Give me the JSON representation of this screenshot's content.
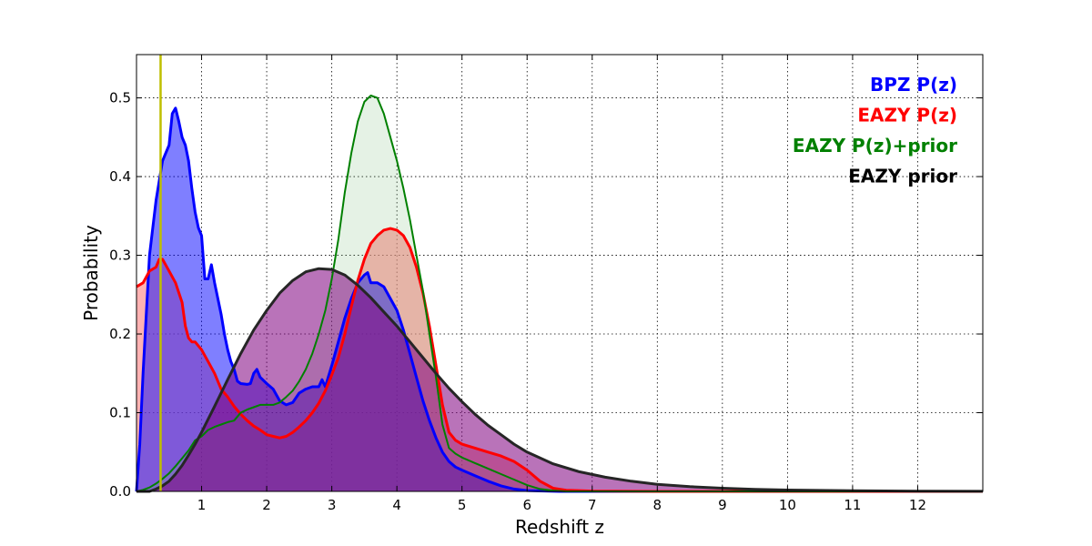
{
  "chart_data": {
    "type": "area",
    "title": "",
    "xlabel": "Redshift z",
    "ylabel": "Probability",
    "xlim": [
      0,
      13
    ],
    "ylim": [
      0,
      0.555
    ],
    "xticks": [
      "1",
      "2",
      "3",
      "4",
      "5",
      "6",
      "7",
      "8",
      "9",
      "10",
      "11",
      "12"
    ],
    "yticks": [
      "0.0",
      "0.1",
      "0.2",
      "0.3",
      "0.4",
      "0.5"
    ],
    "grid": true,
    "legend_position": "top-right",
    "vline": {
      "x": 0.37,
      "color": "#bfbf00"
    },
    "series": [
      {
        "name": "EAZY P(z)",
        "color": "#ff0000",
        "fill": "#ff7f7f",
        "fill_opacity": 0.6,
        "points": [
          [
            0,
            0.26
          ],
          [
            0.1,
            0.265
          ],
          [
            0.2,
            0.28
          ],
          [
            0.3,
            0.285
          ],
          [
            0.35,
            0.295
          ],
          [
            0.4,
            0.295
          ],
          [
            0.5,
            0.28
          ],
          [
            0.6,
            0.265
          ],
          [
            0.7,
            0.24
          ],
          [
            0.75,
            0.21
          ],
          [
            0.8,
            0.195
          ],
          [
            0.85,
            0.19
          ],
          [
            0.9,
            0.19
          ],
          [
            1.0,
            0.18
          ],
          [
            1.1,
            0.165
          ],
          [
            1.2,
            0.15
          ],
          [
            1.3,
            0.13
          ],
          [
            1.4,
            0.12
          ],
          [
            1.5,
            0.108
          ],
          [
            1.6,
            0.098
          ],
          [
            1.7,
            0.09
          ],
          [
            1.8,
            0.083
          ],
          [
            1.9,
            0.078
          ],
          [
            2.0,
            0.072
          ],
          [
            2.1,
            0.07
          ],
          [
            2.2,
            0.068
          ],
          [
            2.3,
            0.07
          ],
          [
            2.4,
            0.075
          ],
          [
            2.5,
            0.082
          ],
          [
            2.6,
            0.09
          ],
          [
            2.7,
            0.1
          ],
          [
            2.8,
            0.112
          ],
          [
            2.9,
            0.128
          ],
          [
            3.0,
            0.148
          ],
          [
            3.1,
            0.17
          ],
          [
            3.2,
            0.2
          ],
          [
            3.3,
            0.235
          ],
          [
            3.4,
            0.268
          ],
          [
            3.5,
            0.295
          ],
          [
            3.6,
            0.315
          ],
          [
            3.7,
            0.325
          ],
          [
            3.8,
            0.332
          ],
          [
            3.9,
            0.334
          ],
          [
            4.0,
            0.332
          ],
          [
            4.1,
            0.325
          ],
          [
            4.2,
            0.31
          ],
          [
            4.3,
            0.285
          ],
          [
            4.4,
            0.252
          ],
          [
            4.5,
            0.21
          ],
          [
            4.6,
            0.16
          ],
          [
            4.7,
            0.11
          ],
          [
            4.8,
            0.075
          ],
          [
            4.9,
            0.065
          ],
          [
            5.0,
            0.06
          ],
          [
            5.2,
            0.055
          ],
          [
            5.4,
            0.05
          ],
          [
            5.6,
            0.045
          ],
          [
            5.8,
            0.038
          ],
          [
            6.0,
            0.027
          ],
          [
            6.2,
            0.013
          ],
          [
            6.4,
            0.004
          ],
          [
            6.6,
            0.0015
          ],
          [
            7.0,
            0.0005
          ],
          [
            8.0,
            0.0
          ],
          [
            13.0,
            0.0
          ]
        ]
      },
      {
        "name": "BPZ P(z)",
        "color": "#0000ff",
        "fill": "#0000ff",
        "fill_opacity": 0.5,
        "points": [
          [
            0,
            0.0
          ],
          [
            0.05,
            0.06
          ],
          [
            0.1,
            0.15
          ],
          [
            0.2,
            0.3
          ],
          [
            0.3,
            0.37
          ],
          [
            0.4,
            0.42
          ],
          [
            0.45,
            0.43
          ],
          [
            0.5,
            0.44
          ],
          [
            0.55,
            0.48
          ],
          [
            0.6,
            0.487
          ],
          [
            0.65,
            0.47
          ],
          [
            0.7,
            0.45
          ],
          [
            0.75,
            0.44
          ],
          [
            0.8,
            0.42
          ],
          [
            0.85,
            0.385
          ],
          [
            0.9,
            0.355
          ],
          [
            0.95,
            0.335
          ],
          [
            1.0,
            0.325
          ],
          [
            1.05,
            0.27
          ],
          [
            1.1,
            0.27
          ],
          [
            1.15,
            0.288
          ],
          [
            1.2,
            0.265
          ],
          [
            1.25,
            0.245
          ],
          [
            1.3,
            0.225
          ],
          [
            1.35,
            0.2
          ],
          [
            1.4,
            0.18
          ],
          [
            1.45,
            0.165
          ],
          [
            1.5,
            0.155
          ],
          [
            1.55,
            0.14
          ],
          [
            1.6,
            0.137
          ],
          [
            1.7,
            0.136
          ],
          [
            1.75,
            0.137
          ],
          [
            1.8,
            0.15
          ],
          [
            1.85,
            0.155
          ],
          [
            1.9,
            0.145
          ],
          [
            2.0,
            0.137
          ],
          [
            2.1,
            0.13
          ],
          [
            2.2,
            0.115
          ],
          [
            2.3,
            0.11
          ],
          [
            2.4,
            0.113
          ],
          [
            2.5,
            0.125
          ],
          [
            2.6,
            0.13
          ],
          [
            2.7,
            0.133
          ],
          [
            2.8,
            0.133
          ],
          [
            2.85,
            0.142
          ],
          [
            2.9,
            0.133
          ],
          [
            3.0,
            0.16
          ],
          [
            3.1,
            0.19
          ],
          [
            3.2,
            0.22
          ],
          [
            3.3,
            0.245
          ],
          [
            3.4,
            0.265
          ],
          [
            3.5,
            0.275
          ],
          [
            3.55,
            0.278
          ],
          [
            3.6,
            0.265
          ],
          [
            3.7,
            0.265
          ],
          [
            3.8,
            0.26
          ],
          [
            3.9,
            0.245
          ],
          [
            4.0,
            0.23
          ],
          [
            4.1,
            0.205
          ],
          [
            4.2,
            0.175
          ],
          [
            4.3,
            0.145
          ],
          [
            4.4,
            0.115
          ],
          [
            4.5,
            0.09
          ],
          [
            4.6,
            0.068
          ],
          [
            4.7,
            0.05
          ],
          [
            4.8,
            0.038
          ],
          [
            4.9,
            0.031
          ],
          [
            5.0,
            0.027
          ],
          [
            5.2,
            0.02
          ],
          [
            5.4,
            0.013
          ],
          [
            5.6,
            0.007
          ],
          [
            5.8,
            0.003
          ],
          [
            6.0,
            0.001
          ],
          [
            6.5,
            0.0
          ],
          [
            13.0,
            0.0
          ]
        ]
      },
      {
        "name": "EAZY P(z)+prior",
        "color": "#008000",
        "fill": "#7fbf7f",
        "fill_opacity": 0.2,
        "points": [
          [
            0,
            0.0
          ],
          [
            0.1,
            0.002
          ],
          [
            0.2,
            0.005
          ],
          [
            0.3,
            0.01
          ],
          [
            0.4,
            0.016
          ],
          [
            0.5,
            0.023
          ],
          [
            0.6,
            0.032
          ],
          [
            0.7,
            0.042
          ],
          [
            0.8,
            0.052
          ],
          [
            0.9,
            0.065
          ],
          [
            1.0,
            0.07
          ],
          [
            1.1,
            0.078
          ],
          [
            1.2,
            0.082
          ],
          [
            1.3,
            0.085
          ],
          [
            1.4,
            0.088
          ],
          [
            1.5,
            0.09
          ],
          [
            1.6,
            0.1
          ],
          [
            1.7,
            0.104
          ],
          [
            1.8,
            0.107
          ],
          [
            1.9,
            0.11
          ],
          [
            2.0,
            0.11
          ],
          [
            2.1,
            0.11
          ],
          [
            2.2,
            0.113
          ],
          [
            2.3,
            0.12
          ],
          [
            2.4,
            0.128
          ],
          [
            2.5,
            0.14
          ],
          [
            2.6,
            0.155
          ],
          [
            2.7,
            0.175
          ],
          [
            2.8,
            0.2
          ],
          [
            2.9,
            0.23
          ],
          [
            3.0,
            0.27
          ],
          [
            3.1,
            0.32
          ],
          [
            3.2,
            0.38
          ],
          [
            3.3,
            0.43
          ],
          [
            3.4,
            0.47
          ],
          [
            3.5,
            0.495
          ],
          [
            3.6,
            0.503
          ],
          [
            3.7,
            0.5
          ],
          [
            3.8,
            0.48
          ],
          [
            3.9,
            0.45
          ],
          [
            4.0,
            0.42
          ],
          [
            4.1,
            0.385
          ],
          [
            4.2,
            0.345
          ],
          [
            4.3,
            0.3
          ],
          [
            4.4,
            0.255
          ],
          [
            4.5,
            0.2
          ],
          [
            4.6,
            0.145
          ],
          [
            4.7,
            0.085
          ],
          [
            4.8,
            0.055
          ],
          [
            4.9,
            0.048
          ],
          [
            5.0,
            0.043
          ],
          [
            5.2,
            0.036
          ],
          [
            5.4,
            0.029
          ],
          [
            5.6,
            0.022
          ],
          [
            5.8,
            0.015
          ],
          [
            6.0,
            0.008
          ],
          [
            6.2,
            0.003
          ],
          [
            6.4,
            0.001
          ],
          [
            6.6,
            0.0
          ],
          [
            13.0,
            0.0
          ]
        ]
      },
      {
        "name": "EAZY prior",
        "color": "#262626",
        "fill": "#7f007f",
        "fill_opacity": 0.55,
        "points": [
          [
            0,
            0.0
          ],
          [
            0.2,
            0.0
          ],
          [
            0.3,
            0.003
          ],
          [
            0.4,
            0.007
          ],
          [
            0.5,
            0.013
          ],
          [
            0.6,
            0.022
          ],
          [
            0.7,
            0.033
          ],
          [
            0.8,
            0.046
          ],
          [
            0.9,
            0.06
          ],
          [
            1.0,
            0.075
          ],
          [
            1.2,
            0.108
          ],
          [
            1.4,
            0.142
          ],
          [
            1.6,
            0.175
          ],
          [
            1.8,
            0.205
          ],
          [
            2.0,
            0.23
          ],
          [
            2.2,
            0.252
          ],
          [
            2.4,
            0.268
          ],
          [
            2.6,
            0.279
          ],
          [
            2.8,
            0.283
          ],
          [
            3.0,
            0.282
          ],
          [
            3.2,
            0.275
          ],
          [
            3.4,
            0.262
          ],
          [
            3.6,
            0.246
          ],
          [
            3.8,
            0.228
          ],
          [
            4.0,
            0.21
          ],
          [
            4.2,
            0.19
          ],
          [
            4.4,
            0.17
          ],
          [
            4.6,
            0.15
          ],
          [
            4.8,
            0.131
          ],
          [
            5.0,
            0.114
          ],
          [
            5.2,
            0.098
          ],
          [
            5.4,
            0.084
          ],
          [
            5.6,
            0.072
          ],
          [
            5.8,
            0.06
          ],
          [
            6.0,
            0.05
          ],
          [
            6.4,
            0.035
          ],
          [
            6.8,
            0.025
          ],
          [
            7.2,
            0.018
          ],
          [
            7.6,
            0.013
          ],
          [
            8.0,
            0.009
          ],
          [
            8.5,
            0.006
          ],
          [
            9.0,
            0.004
          ],
          [
            9.5,
            0.0025
          ],
          [
            10.0,
            0.0017
          ],
          [
            11.0,
            0.0008
          ],
          [
            12.0,
            0.0003
          ],
          [
            13.0,
            0.0001
          ]
        ]
      }
    ],
    "legend": [
      {
        "label": "BPZ P(z)",
        "color": "#0000ff"
      },
      {
        "label": "EAZY P(z)",
        "color": "#ff0000"
      },
      {
        "label": "EAZY P(z)+prior",
        "color": "#008000"
      },
      {
        "label": "EAZY prior",
        "color": "#000000"
      }
    ]
  }
}
